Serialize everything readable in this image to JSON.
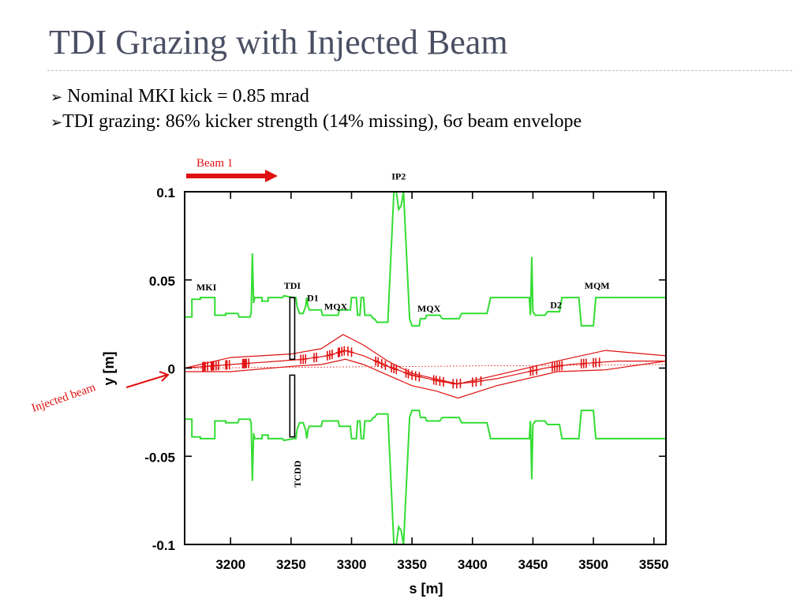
{
  "slide": {
    "title": "TDI Grazing with Injected Beam",
    "bullets": [
      {
        "marker": "➢",
        "text": " Nominal MKI kick = 0.85 mrad"
      },
      {
        "marker": "➢",
        "text": "TDI grazing: 86% kicker strength (14% missing), 6σ beam envelope"
      }
    ]
  },
  "colors": {
    "title": "#4b4f63",
    "aperture": "#33dd33",
    "beam": "#e01010",
    "annotation_red": "#e01010",
    "jaw": "#000000"
  },
  "chart_data": {
    "type": "line",
    "xlabel": "s [m]",
    "ylabel": "y [m]",
    "xlim": [
      3162,
      3560
    ],
    "ylim": [
      -0.1,
      0.1
    ],
    "xticks": [
      3200,
      3250,
      3300,
      3350,
      3400,
      3450,
      3500,
      3550
    ],
    "yticks": [
      0.1,
      0.05,
      0,
      -0.05,
      -0.1
    ],
    "ytick_labels": [
      "0.1",
      "0.05",
      "0",
      "-0.05",
      "-0.1"
    ],
    "grid": false,
    "element_labels": [
      {
        "text": "MKI",
        "s": 3180,
        "y": 0.044
      },
      {
        "text": "TDI",
        "s": 3251,
        "y": 0.045
      },
      {
        "text": "D1",
        "s": 3268,
        "y": 0.038
      },
      {
        "text": "MQX",
        "s": 3287,
        "y": 0.033
      },
      {
        "text": "IP2",
        "s": 3339,
        "y": 0.107
      },
      {
        "text": "MQX",
        "s": 3364,
        "y": 0.032
      },
      {
        "text": "D2",
        "s": 3469,
        "y": 0.034
      },
      {
        "text": "MQM",
        "s": 3503,
        "y": 0.045
      },
      {
        "text": "TCDD",
        "s": 3258,
        "y": -0.06
      }
    ],
    "annotations": {
      "beam_direction": "Beam 1",
      "injected": "Injected beam"
    },
    "series": [
      {
        "role": "aperture-upper",
        "color": "#33dd33",
        "x": [
          3162,
          3168,
          3168,
          3175,
          3175,
          3187,
          3187,
          3196,
          3196,
          3206,
          3207,
          3216,
          3217,
          3218,
          3219,
          3220,
          3221,
          3226,
          3226,
          3231,
          3231,
          3243,
          3244,
          3252,
          3254,
          3255,
          3257,
          3260,
          3262,
          3263,
          3264,
          3265,
          3267,
          3275,
          3276,
          3283,
          3285,
          3289,
          3290,
          3299,
          3300,
          3304,
          3305,
          3307,
          3308,
          3310,
          3311,
          3316,
          3318,
          3319,
          3321,
          3330,
          3335,
          3337,
          3339,
          3341,
          3343,
          3348,
          3350,
          3356,
          3357,
          3361,
          3362,
          3373,
          3375,
          3389,
          3391,
          3412,
          3415,
          3447,
          3448,
          3449,
          3450,
          3452,
          3460,
          3462,
          3472,
          3474,
          3488,
          3490,
          3500,
          3502,
          3510,
          3512,
          3520,
          3560
        ],
        "y": [
          0.029,
          0.029,
          0.039,
          0.039,
          0.04,
          0.04,
          0.03,
          0.03,
          0.031,
          0.031,
          0.029,
          0.029,
          0.031,
          0.065,
          0.037,
          0.04,
          0.04,
          0.04,
          0.038,
          0.038,
          0.04,
          0.04,
          0.041,
          0.04,
          0.04,
          0.035,
          0.031,
          0.031,
          0.035,
          0.04,
          0.035,
          0.033,
          0.033,
          0.033,
          0.03,
          0.03,
          0.03,
          0.03,
          0.033,
          0.033,
          0.04,
          0.04,
          0.03,
          0.03,
          0.04,
          0.04,
          0.03,
          0.03,
          0.028,
          0.028,
          0.026,
          0.026,
          0.1,
          0.1,
          0.09,
          0.092,
          0.1,
          0.028,
          0.024,
          0.024,
          0.028,
          0.028,
          0.03,
          0.03,
          0.028,
          0.028,
          0.031,
          0.031,
          0.04,
          0.04,
          0.03,
          0.063,
          0.032,
          0.03,
          0.03,
          0.032,
          0.032,
          0.04,
          0.04,
          0.024,
          0.024,
          0.04,
          0.04,
          0.04,
          0.04,
          0.04
        ]
      },
      {
        "role": "aperture-lower",
        "color": "#33dd33",
        "x": [
          3162,
          3168,
          3168,
          3175,
          3175,
          3187,
          3187,
          3196,
          3196,
          3206,
          3207,
          3216,
          3217,
          3218,
          3219,
          3220,
          3221,
          3226,
          3226,
          3231,
          3231,
          3243,
          3244,
          3252,
          3254,
          3255,
          3257,
          3260,
          3262,
          3263,
          3264,
          3265,
          3267,
          3275,
          3276,
          3283,
          3285,
          3289,
          3290,
          3299,
          3300,
          3304,
          3305,
          3307,
          3308,
          3310,
          3311,
          3316,
          3318,
          3319,
          3321,
          3330,
          3335,
          3337,
          3339,
          3341,
          3343,
          3348,
          3350,
          3356,
          3357,
          3361,
          3362,
          3373,
          3375,
          3389,
          3391,
          3412,
          3415,
          3447,
          3448,
          3449,
          3450,
          3452,
          3460,
          3462,
          3472,
          3474,
          3488,
          3490,
          3500,
          3502,
          3510,
          3512,
          3520,
          3560
        ],
        "y": [
          -0.029,
          -0.029,
          -0.039,
          -0.039,
          -0.04,
          -0.04,
          -0.03,
          -0.03,
          -0.031,
          -0.031,
          -0.029,
          -0.029,
          -0.031,
          -0.064,
          -0.037,
          -0.04,
          -0.04,
          -0.04,
          -0.038,
          -0.038,
          -0.04,
          -0.04,
          -0.041,
          -0.04,
          -0.04,
          -0.035,
          -0.031,
          -0.031,
          -0.035,
          -0.04,
          -0.035,
          -0.033,
          -0.033,
          -0.033,
          -0.03,
          -0.03,
          -0.03,
          -0.03,
          -0.033,
          -0.033,
          -0.04,
          -0.04,
          -0.03,
          -0.03,
          -0.04,
          -0.04,
          -0.03,
          -0.03,
          -0.028,
          -0.028,
          -0.026,
          -0.026,
          -0.1,
          -0.1,
          -0.09,
          -0.092,
          -0.1,
          -0.028,
          -0.024,
          -0.024,
          -0.028,
          -0.028,
          -0.03,
          -0.03,
          -0.028,
          -0.028,
          -0.031,
          -0.031,
          -0.04,
          -0.04,
          -0.03,
          -0.063,
          -0.032,
          -0.03,
          -0.03,
          -0.032,
          -0.032,
          -0.04,
          -0.04,
          -0.024,
          -0.024,
          -0.04,
          -0.04,
          -0.04,
          -0.04,
          -0.04
        ]
      },
      {
        "role": "trajectory",
        "color": "#e01010",
        "x": [
          3162,
          3180,
          3200,
          3220,
          3240,
          3260,
          3280,
          3295,
          3310,
          3330,
          3350,
          3370,
          3385,
          3400,
          3420,
          3440,
          3460,
          3480,
          3500,
          3520,
          3560
        ],
        "y": [
          0.0,
          0.001,
          0.002,
          0.003,
          0.004,
          0.005,
          0.007,
          0.01,
          0.007,
          0.001,
          -0.004,
          -0.007,
          -0.009,
          -0.008,
          -0.006,
          -0.003,
          0.0,
          0.002,
          0.003,
          0.004,
          0.004
        ]
      },
      {
        "role": "envelope-upper",
        "color": "#e01010",
        "x": [
          3162,
          3200,
          3250,
          3275,
          3293,
          3310,
          3330,
          3350,
          3375,
          3388,
          3420,
          3470,
          3510,
          3560
        ],
        "y": [
          0.0,
          0.006,
          0.008,
          0.011,
          0.019,
          0.013,
          0.004,
          -0.003,
          -0.007,
          -0.009,
          -0.004,
          0.004,
          0.01,
          0.007
        ]
      },
      {
        "role": "envelope-lower",
        "color": "#e01010",
        "x": [
          3162,
          3200,
          3250,
          3275,
          3295,
          3310,
          3330,
          3350,
          3370,
          3388,
          3420,
          3470,
          3510,
          3560
        ],
        "y": [
          -0.002,
          -0.002,
          0.001,
          0.002,
          0.005,
          0.002,
          -0.004,
          -0.01,
          -0.013,
          -0.017,
          -0.01,
          -0.002,
          -0.001,
          0.004
        ]
      },
      {
        "role": "reference-orbit",
        "color": "#e01010",
        "x": [
          3162,
          3560
        ],
        "y": [
          0.0,
          0.002
        ]
      }
    ],
    "markers": {
      "color": "#e01010",
      "groups": [
        [
          3177,
          3178,
          3179,
          3181
        ],
        [
          3184,
          3185,
          3186,
          3188,
          3190
        ],
        [
          3196,
          3197,
          3199
        ],
        [
          3210,
          3211,
          3212,
          3213,
          3215
        ],
        [
          3258,
          3260,
          3262
        ],
        [
          3269,
          3271
        ],
        [
          3280,
          3282,
          3284
        ],
        [
          3289,
          3290,
          3292,
          3294,
          3297,
          3300
        ],
        [
          3320,
          3322,
          3325,
          3328
        ],
        [
          3333,
          3335,
          3337
        ],
        [
          3345,
          3347,
          3350,
          3353,
          3356
        ],
        [
          3368,
          3370,
          3373,
          3376
        ],
        [
          3384,
          3387,
          3390
        ],
        [
          3400,
          3403,
          3407
        ],
        [
          3448,
          3450,
          3453
        ],
        [
          3466,
          3468,
          3470,
          3472,
          3474
        ],
        [
          3490,
          3492,
          3494
        ],
        [
          3500,
          3502,
          3505
        ]
      ]
    },
    "jaws": [
      {
        "name": "TDI",
        "s1": 3249,
        "s2": 3253,
        "y_inner": 0.005,
        "y_outer": 0.04
      },
      {
        "name": "TCDD",
        "s1": 3249,
        "s2": 3253,
        "y_inner": -0.004,
        "y_outer": -0.039
      }
    ]
  }
}
